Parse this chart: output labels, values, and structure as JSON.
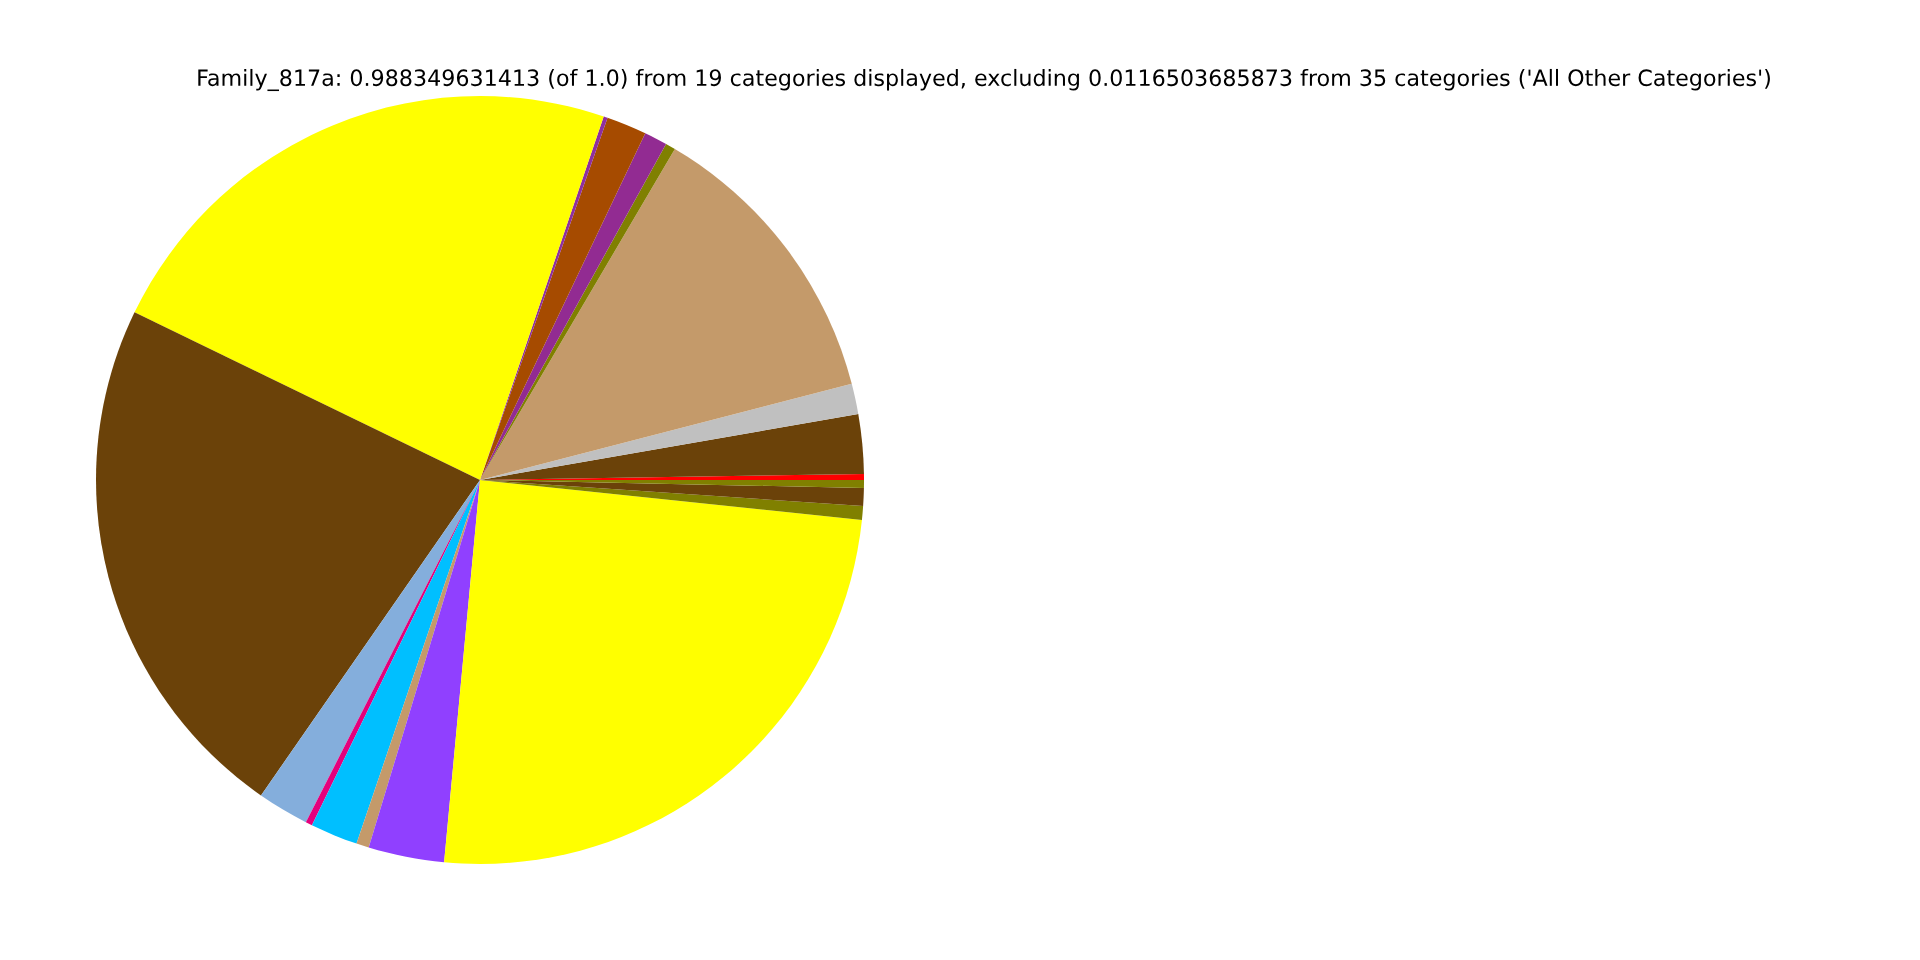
{
  "chart_data": {
    "type": "pie",
    "title": "Family_817a: 0.988349631413 (of 1.0) from 19 categories displayed, excluding 0.0116503685873 from 35 categories ('All Other Categories')",
    "categories": [
      null,
      null,
      null,
      null,
      null,
      null,
      null,
      null,
      null,
      null,
      null,
      null,
      null,
      null,
      null,
      null,
      null,
      null,
      null
    ],
    "values": [
      0.25,
      2.5,
      1.28,
      12.5,
      0.42,
      0.97,
      1.69,
      0.17,
      23.03,
      22.53,
      2.17,
      0.28,
      2.0,
      0.53,
      3.19,
      24.83,
      0.58,
      0.75,
      0.33
    ],
    "colors": [
      "#ff0000",
      "#6b4209",
      "#c0c0c0",
      "#c49a6a",
      "#808000",
      "#922b92",
      "#a64b00",
      "#8e2fa0",
      "#ffff00",
      "#6b4209",
      "#84aedc",
      "#e4007c",
      "#00bfff",
      "#c49a6a",
      "#9040ff",
      "#ffff00",
      "#808000",
      "#6b4209",
      "#808000"
    ]
  }
}
